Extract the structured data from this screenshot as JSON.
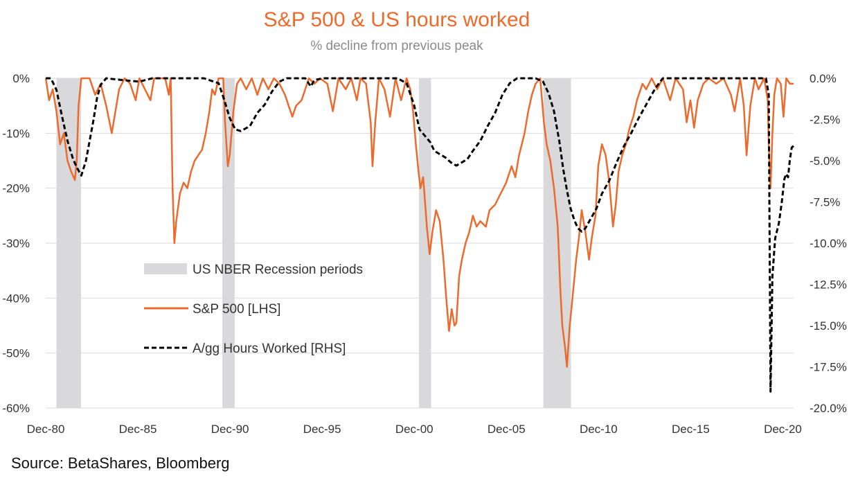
{
  "title": "S&P 500 & US hours worked",
  "subtitle": "% decline from previous peak",
  "source": "Source: BetaShares, Bloomberg",
  "colors": {
    "sp500": "#EB6A2C",
    "hours": "#000000",
    "recession": "#D9D9DB",
    "grid": "#D9D9D9",
    "title": "#EB6A2C"
  },
  "chart_data": {
    "type": "line",
    "title": "S&P 500 & US hours worked",
    "subtitle": "% decline from previous peak",
    "xlabel": "",
    "ylabel": "",
    "x_range": [
      1980.917,
      2021.5
    ],
    "x_ticks": [
      "Dec-80",
      "Dec-85",
      "Dec-90",
      "Dec-95",
      "Dec-00",
      "Dec-05",
      "Dec-10",
      "Dec-15",
      "Dec-20"
    ],
    "x_tick_years": [
      1980.917,
      1985.917,
      1990.917,
      1995.917,
      2000.917,
      2005.917,
      2010.917,
      2015.917,
      2020.917
    ],
    "y_left": {
      "range": [
        -60,
        0
      ],
      "ticks": [
        "0%",
        "-10%",
        "-20%",
        "-30%",
        "-40%",
        "-50%",
        "-60%"
      ],
      "tick_values": [
        0,
        -10,
        -20,
        -30,
        -40,
        -50,
        -60
      ]
    },
    "y_right": {
      "range": [
        -20,
        0
      ],
      "ticks": [
        "0.0%",
        "-2.5%",
        "-5.0%",
        "-7.5%",
        "-10.0%",
        "-12.5%",
        "-15.0%",
        "-17.5%",
        "-20.0%"
      ],
      "tick_values": [
        0,
        -2.5,
        -5,
        -7.5,
        -10,
        -12.5,
        -15,
        -17.5,
        -20
      ]
    },
    "grid": true,
    "legend": [
      {
        "label": "US NBER Recession periods",
        "key": "recession"
      },
      {
        "label": "S&P 500 [LHS]",
        "key": "sp500"
      },
      {
        "label": "A/gg Hours Worked [RHS]",
        "key": "hours"
      }
    ],
    "legend_position": "center-left",
    "recessions": [
      [
        1981.5,
        1982.83
      ],
      [
        1990.5,
        1991.17
      ],
      [
        2001.17,
        2001.83
      ],
      [
        2007.92,
        2009.42
      ]
    ],
    "series": [
      {
        "name": "S&P 500 [LHS]",
        "axis": "left",
        "style": "solid",
        "points": [
          [
            1980.92,
            0
          ],
          [
            1981.1,
            -4
          ],
          [
            1981.3,
            -2
          ],
          [
            1981.5,
            -6
          ],
          [
            1981.7,
            -12
          ],
          [
            1981.9,
            -10
          ],
          [
            1982.1,
            -15
          ],
          [
            1982.3,
            -17
          ],
          [
            1982.5,
            -18.5
          ],
          [
            1982.6,
            -15
          ],
          [
            1982.7,
            -5
          ],
          [
            1982.85,
            0
          ],
          [
            1983.3,
            0
          ],
          [
            1983.6,
            -3
          ],
          [
            1983.9,
            -1
          ],
          [
            1984.2,
            -5
          ],
          [
            1984.5,
            -10
          ],
          [
            1984.7,
            -6
          ],
          [
            1984.9,
            -2
          ],
          [
            1985.2,
            0
          ],
          [
            1985.5,
            -1
          ],
          [
            1985.8,
            -4
          ],
          [
            1986.0,
            0
          ],
          [
            1986.3,
            -2
          ],
          [
            1986.6,
            -4
          ],
          [
            1986.8,
            0
          ],
          [
            1987.4,
            0
          ],
          [
            1987.6,
            -3
          ],
          [
            1987.7,
            0
          ],
          [
            1987.8,
            -20
          ],
          [
            1987.9,
            -30
          ],
          [
            1988.0,
            -26
          ],
          [
            1988.2,
            -21
          ],
          [
            1988.4,
            -19
          ],
          [
            1988.6,
            -20
          ],
          [
            1988.8,
            -17
          ],
          [
            1989.0,
            -15
          ],
          [
            1989.2,
            -14
          ],
          [
            1989.4,
            -13
          ],
          [
            1989.6,
            -10
          ],
          [
            1989.8,
            -6
          ],
          [
            1989.95,
            -2
          ],
          [
            1990.1,
            -3
          ],
          [
            1990.3,
            0
          ],
          [
            1990.55,
            0
          ],
          [
            1990.65,
            -8
          ],
          [
            1990.8,
            -16
          ],
          [
            1990.9,
            -14
          ],
          [
            1991.1,
            -6
          ],
          [
            1991.3,
            -1
          ],
          [
            1991.5,
            0
          ],
          [
            1991.8,
            -2
          ],
          [
            1992.1,
            0
          ],
          [
            1992.4,
            -3
          ],
          [
            1992.7,
            0
          ],
          [
            1993.0,
            -2
          ],
          [
            1993.3,
            0
          ],
          [
            1993.6,
            -1
          ],
          [
            1993.9,
            -3
          ],
          [
            1994.1,
            -5
          ],
          [
            1994.3,
            -7
          ],
          [
            1994.5,
            -5
          ],
          [
            1994.8,
            -4
          ],
          [
            1995.0,
            -2
          ],
          [
            1995.2,
            0
          ],
          [
            1995.5,
            -1
          ],
          [
            1995.8,
            0
          ],
          [
            1996.2,
            -1
          ],
          [
            1996.5,
            -6
          ],
          [
            1996.8,
            0
          ],
          [
            1997.2,
            -2
          ],
          [
            1997.5,
            0
          ],
          [
            1997.8,
            -4
          ],
          [
            1998.0,
            0
          ],
          [
            1998.3,
            -1
          ],
          [
            1998.55,
            -8
          ],
          [
            1998.65,
            -16
          ],
          [
            1998.8,
            -8
          ],
          [
            1999.0,
            0
          ],
          [
            1999.3,
            -2
          ],
          [
            1999.6,
            -7
          ],
          [
            1999.9,
            0
          ],
          [
            2000.2,
            -4
          ],
          [
            2000.5,
            0
          ],
          [
            2000.7,
            -2
          ],
          [
            2000.85,
            -6
          ],
          [
            2001.0,
            -12
          ],
          [
            2001.15,
            -17
          ],
          [
            2001.25,
            -20
          ],
          [
            2001.4,
            -18
          ],
          [
            2001.6,
            -27
          ],
          [
            2001.75,
            -32
          ],
          [
            2001.9,
            -28
          ],
          [
            2002.1,
            -24
          ],
          [
            2002.3,
            -26
          ],
          [
            2002.5,
            -33
          ],
          [
            2002.65,
            -40
          ],
          [
            2002.8,
            -46
          ],
          [
            2002.95,
            -42
          ],
          [
            2003.1,
            -45
          ],
          [
            2003.2,
            -44.5
          ],
          [
            2003.35,
            -36
          ],
          [
            2003.5,
            -33
          ],
          [
            2003.7,
            -30
          ],
          [
            2003.9,
            -28
          ],
          [
            2004.1,
            -25
          ],
          [
            2004.3,
            -27
          ],
          [
            2004.5,
            -26
          ],
          [
            2004.8,
            -27
          ],
          [
            2005.0,
            -24
          ],
          [
            2005.3,
            -23
          ],
          [
            2005.6,
            -21
          ],
          [
            2005.9,
            -19
          ],
          [
            2006.2,
            -16
          ],
          [
            2006.4,
            -18
          ],
          [
            2006.6,
            -14
          ],
          [
            2006.9,
            -10
          ],
          [
            2007.1,
            -6
          ],
          [
            2007.3,
            -3
          ],
          [
            2007.5,
            -1
          ],
          [
            2007.75,
            0
          ],
          [
            2007.95,
            -8
          ],
          [
            2008.1,
            -12
          ],
          [
            2008.3,
            -15
          ],
          [
            2008.5,
            -20
          ],
          [
            2008.7,
            -27
          ],
          [
            2008.85,
            -39
          ],
          [
            2008.95,
            -45
          ],
          [
            2009.1,
            -49
          ],
          [
            2009.2,
            -52.5
          ],
          [
            2009.35,
            -45
          ],
          [
            2009.5,
            -40
          ],
          [
            2009.7,
            -33
          ],
          [
            2009.85,
            -29
          ],
          [
            2010.0,
            -24
          ],
          [
            2010.2,
            -28
          ],
          [
            2010.4,
            -33
          ],
          [
            2010.55,
            -29
          ],
          [
            2010.75,
            -25
          ],
          [
            2010.9,
            -16
          ],
          [
            2011.1,
            -12
          ],
          [
            2011.3,
            -14
          ],
          [
            2011.5,
            -19
          ],
          [
            2011.7,
            -27
          ],
          [
            2011.85,
            -23
          ],
          [
            2012.0,
            -17
          ],
          [
            2012.2,
            -14
          ],
          [
            2012.4,
            -12
          ],
          [
            2012.6,
            -9
          ],
          [
            2012.8,
            -7
          ],
          [
            2013.0,
            -4
          ],
          [
            2013.3,
            -1
          ],
          [
            2013.5,
            -2
          ],
          [
            2013.8,
            0
          ],
          [
            2014.1,
            -2
          ],
          [
            2014.4,
            0
          ],
          [
            2014.8,
            -4
          ],
          [
            2015.1,
            0
          ],
          [
            2015.5,
            -2
          ],
          [
            2015.7,
            -8
          ],
          [
            2015.9,
            -4
          ],
          [
            2016.1,
            -9
          ],
          [
            2016.3,
            -4
          ],
          [
            2016.6,
            -1
          ],
          [
            2016.9,
            0
          ],
          [
            2017.3,
            -1
          ],
          [
            2017.7,
            0
          ],
          [
            2018.1,
            -3
          ],
          [
            2018.3,
            -6
          ],
          [
            2018.6,
            0
          ],
          [
            2018.8,
            -5
          ],
          [
            2018.95,
            -14
          ],
          [
            2019.15,
            -5
          ],
          [
            2019.4,
            0
          ],
          [
            2019.6,
            -2
          ],
          [
            2019.9,
            0
          ],
          [
            2020.1,
            -4
          ],
          [
            2020.15,
            -12
          ],
          [
            2020.25,
            -20
          ],
          [
            2020.35,
            -10
          ],
          [
            2020.45,
            -3
          ],
          [
            2020.6,
            0
          ],
          [
            2020.8,
            -1
          ],
          [
            2020.95,
            -7
          ],
          [
            2021.1,
            0
          ],
          [
            2021.3,
            -1
          ],
          [
            2021.5,
            -1
          ]
        ]
      },
      {
        "name": "A/gg Hours Worked [RHS]",
        "axis": "right",
        "style": "dashed",
        "points": [
          [
            1980.92,
            0
          ],
          [
            1981.2,
            0
          ],
          [
            1981.5,
            -0.7
          ],
          [
            1981.8,
            -2.3
          ],
          [
            1982.1,
            -3.8
          ],
          [
            1982.4,
            -4.9
          ],
          [
            1982.6,
            -5.4
          ],
          [
            1982.85,
            -5.9
          ],
          [
            1983.1,
            -5.0
          ],
          [
            1983.3,
            -3.8
          ],
          [
            1983.5,
            -2.6
          ],
          [
            1983.7,
            -1.2
          ],
          [
            1983.9,
            -0.4
          ],
          [
            1984.2,
            0
          ],
          [
            1985.0,
            -0.1
          ],
          [
            1986.0,
            -0.2
          ],
          [
            1986.7,
            0
          ],
          [
            1988.0,
            0
          ],
          [
            1989.5,
            0
          ],
          [
            1990.3,
            -0.3
          ],
          [
            1990.6,
            -1.3
          ],
          [
            1990.9,
            -2.4
          ],
          [
            1991.2,
            -3.1
          ],
          [
            1991.5,
            -3.2
          ],
          [
            1992.0,
            -2.9
          ],
          [
            1992.4,
            -2.1
          ],
          [
            1992.8,
            -1.6
          ],
          [
            1993.2,
            -0.8
          ],
          [
            1993.6,
            -0.2
          ],
          [
            1994.0,
            0
          ],
          [
            1995.0,
            0
          ],
          [
            1995.3,
            -0.5
          ],
          [
            1995.5,
            -0.1
          ],
          [
            1996.0,
            0
          ],
          [
            1997.0,
            0
          ],
          [
            2000.0,
            0
          ],
          [
            2000.5,
            -0.3
          ],
          [
            2000.9,
            -1.6
          ],
          [
            2001.2,
            -3.1
          ],
          [
            2001.5,
            -3.5
          ],
          [
            2001.8,
            -3.9
          ],
          [
            2002.0,
            -4.4
          ],
          [
            2002.3,
            -4.6
          ],
          [
            2002.6,
            -4.8
          ],
          [
            2002.9,
            -5.1
          ],
          [
            2003.2,
            -5.3
          ],
          [
            2003.5,
            -5.1
          ],
          [
            2003.8,
            -4.9
          ],
          [
            2004.1,
            -4.4
          ],
          [
            2004.5,
            -3.8
          ],
          [
            2004.9,
            -2.9
          ],
          [
            2005.3,
            -2.1
          ],
          [
            2005.7,
            -1.0
          ],
          [
            2006.1,
            -0.3
          ],
          [
            2006.5,
            0
          ],
          [
            2007.5,
            0
          ],
          [
            2007.9,
            -0.2
          ],
          [
            2008.2,
            -0.9
          ],
          [
            2008.5,
            -2.0
          ],
          [
            2008.8,
            -3.9
          ],
          [
            2009.0,
            -5.5
          ],
          [
            2009.2,
            -6.8
          ],
          [
            2009.4,
            -7.9
          ],
          [
            2009.6,
            -8.6
          ],
          [
            2009.8,
            -9.1
          ],
          [
            2010.0,
            -9.3
          ],
          [
            2010.2,
            -9.1
          ],
          [
            2010.5,
            -8.5
          ],
          [
            2010.8,
            -7.9
          ],
          [
            2011.1,
            -7.0
          ],
          [
            2011.5,
            -6.2
          ],
          [
            2011.9,
            -5.1
          ],
          [
            2012.3,
            -4.1
          ],
          [
            2012.7,
            -3.3
          ],
          [
            2013.1,
            -2.4
          ],
          [
            2013.6,
            -1.4
          ],
          [
            2014.0,
            -0.6
          ],
          [
            2014.4,
            0
          ],
          [
            2016.0,
            0
          ],
          [
            2017.0,
            0
          ],
          [
            2019.0,
            0
          ],
          [
            2020.0,
            0
          ],
          [
            2020.15,
            -1
          ],
          [
            2020.25,
            -19.0
          ],
          [
            2020.35,
            -12
          ],
          [
            2020.5,
            -9.7
          ],
          [
            2020.7,
            -8.8
          ],
          [
            2020.85,
            -7.6
          ],
          [
            2021.0,
            -6.1
          ],
          [
            2021.1,
            -5.8
          ],
          [
            2021.2,
            -6.0
          ],
          [
            2021.3,
            -4.9
          ],
          [
            2021.4,
            -4.2
          ],
          [
            2021.5,
            -4.1
          ]
        ]
      }
    ]
  }
}
